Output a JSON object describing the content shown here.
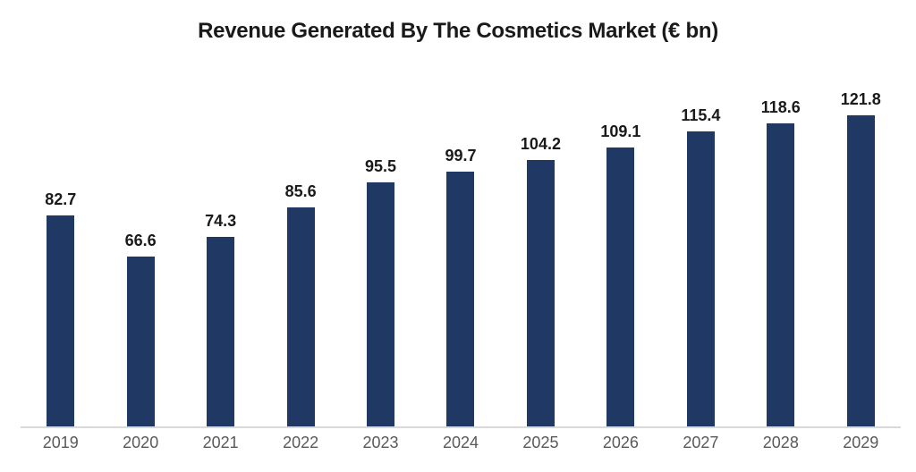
{
  "page": {
    "background_color": "#FFFFFF"
  },
  "chart_data": {
    "type": "bar",
    "title": "Revenue Generated By The Cosmetics Market (€ bn)",
    "categories": [
      "2019",
      "2020",
      "2021",
      "2022",
      "2023",
      "2024",
      "2025",
      "2026",
      "2027",
      "2028",
      "2029"
    ],
    "values": [
      82.7,
      66.6,
      74.3,
      85.6,
      95.5,
      99.7,
      104.2,
      109.1,
      115.4,
      118.6,
      121.8
    ],
    "value_labels": [
      "82.7",
      "66.6",
      "74.3",
      "85.6",
      "95.5",
      "99.7",
      "104.2",
      "109.1",
      "115.4",
      "118.6",
      "121.8"
    ],
    "xlabel": "",
    "ylabel": "",
    "ylim": [
      0,
      135
    ],
    "grid": false,
    "legend": false,
    "value_labels_shown": true,
    "y_axis_shown": false,
    "colors": {
      "bar": "#1F3864",
      "title_text": "#1A1A1A",
      "value_label_text": "#1A1A1A",
      "tick_label_text": "#595959",
      "axis_line": "#D9D9D9"
    }
  }
}
